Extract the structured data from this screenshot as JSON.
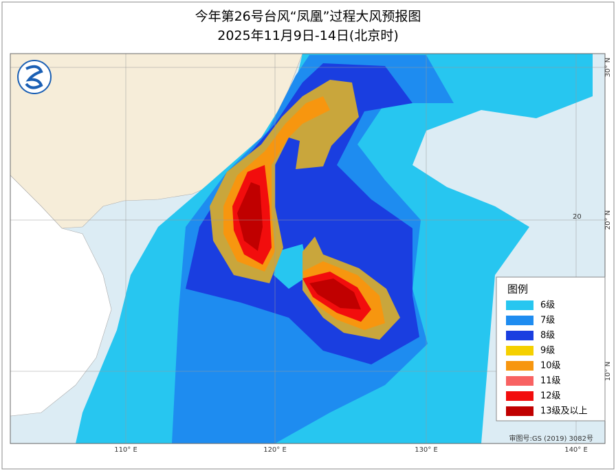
{
  "header": {
    "title": "今年第26号台风“凤凰”过程大风预报图",
    "subtitle": "2025年11月9日-14日(北京时)"
  },
  "map": {
    "lon_labels": [
      "110° E",
      "120° E",
      "130° E",
      "140° E"
    ],
    "lat_labels": [
      "30° N",
      "20° N",
      "10° N"
    ],
    "grid_label": "20",
    "review": "审图号:GS (2019) 3082号"
  },
  "legend": {
    "title": "图例",
    "items": [
      {
        "label": "6级",
        "color": "#27c6f0"
      },
      {
        "label": "7级",
        "color": "#1e8cf0"
      },
      {
        "label": "8级",
        "color": "#1a3ee0"
      },
      {
        "label": "9级",
        "color": "#f5d000"
      },
      {
        "label": "10级",
        "color": "#f7960f"
      },
      {
        "label": "11级",
        "color": "#f86262"
      },
      {
        "label": "12级",
        "color": "#f20d0d"
      },
      {
        "label": "13级及以上",
        "color": "#c00000"
      }
    ]
  }
}
